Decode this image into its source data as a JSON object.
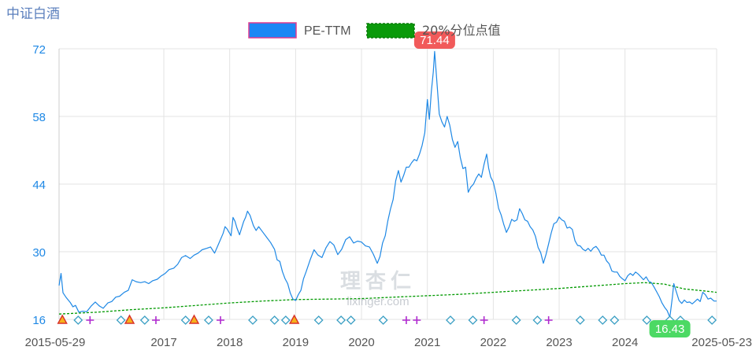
{
  "chart_data": {
    "type": "line",
    "title": "中证白酒",
    "legend": {
      "placement": "top-center",
      "items": [
        {
          "name": "PE-TTM",
          "style": "solid",
          "color": "#1e88e5"
        },
        {
          "name": "20%分位点值",
          "style": "dashed",
          "color": "#009900"
        }
      ]
    },
    "x_start": "2015-05-29",
    "x_end": "2025-05-23",
    "xlim": [
      2015.41,
      2025.39
    ],
    "ylim": [
      16,
      72
    ],
    "y_ticks": [
      16,
      30,
      44,
      58,
      72
    ],
    "x_ticks": [
      {
        "label": "2015-05-29",
        "value": 2015.41
      },
      {
        "label": "2017",
        "value": 2017.0
      },
      {
        "label": "2018",
        "value": 2018.0
      },
      {
        "label": "2019",
        "value": 2019.0
      },
      {
        "label": "2020",
        "value": 2020.0
      },
      {
        "label": "2021",
        "value": 2021.0
      },
      {
        "label": "2022",
        "value": 2022.0
      },
      {
        "label": "2023",
        "value": 2023.0
      },
      {
        "label": "2024",
        "value": 2024.0
      },
      {
        "label": "2025-05-23",
        "value": 2025.39
      }
    ],
    "grid": true,
    "series": [
      {
        "name": "PE-TTM",
        "color": "#1e88e5",
        "points": [
          [
            2015.41,
            23.0
          ],
          [
            2015.44,
            25.5
          ],
          [
            2015.47,
            21.5
          ],
          [
            2015.52,
            20.5
          ],
          [
            2015.58,
            19.5
          ],
          [
            2015.62,
            18.6
          ],
          [
            2015.66,
            18.9
          ],
          [
            2015.71,
            17.5
          ],
          [
            2015.77,
            17.7
          ],
          [
            2015.83,
            17.6
          ],
          [
            2015.9,
            18.8
          ],
          [
            2015.96,
            19.6
          ],
          [
            2016.02,
            18.8
          ],
          [
            2016.08,
            18.3
          ],
          [
            2016.15,
            19.4
          ],
          [
            2016.21,
            19.7
          ],
          [
            2016.27,
            20.6
          ],
          [
            2016.33,
            20.8
          ],
          [
            2016.4,
            21.6
          ],
          [
            2016.46,
            22.0
          ],
          [
            2016.52,
            24.2
          ],
          [
            2016.58,
            23.8
          ],
          [
            2016.65,
            23.6
          ],
          [
            2016.71,
            23.8
          ],
          [
            2016.77,
            23.4
          ],
          [
            2016.83,
            24.0
          ],
          [
            2016.9,
            24.3
          ],
          [
            2016.96,
            25.0
          ],
          [
            2017.02,
            25.5
          ],
          [
            2017.08,
            26.3
          ],
          [
            2017.15,
            26.6
          ],
          [
            2017.21,
            27.4
          ],
          [
            2017.27,
            28.8
          ],
          [
            2017.33,
            29.2
          ],
          [
            2017.4,
            28.6
          ],
          [
            2017.46,
            29.3
          ],
          [
            2017.52,
            29.7
          ],
          [
            2017.58,
            30.4
          ],
          [
            2017.65,
            30.7
          ],
          [
            2017.71,
            31.0
          ],
          [
            2017.77,
            29.7
          ],
          [
            2017.83,
            31.6
          ],
          [
            2017.9,
            33.8
          ],
          [
            2017.93,
            35.2
          ],
          [
            2017.96,
            34.7
          ],
          [
            2018.02,
            33.3
          ],
          [
            2018.05,
            37.1
          ],
          [
            2018.08,
            36.3
          ],
          [
            2018.11,
            34.9
          ],
          [
            2018.15,
            33.5
          ],
          [
            2018.18,
            34.9
          ],
          [
            2018.21,
            36.2
          ],
          [
            2018.24,
            37.1
          ],
          [
            2018.27,
            38.4
          ],
          [
            2018.31,
            37.5
          ],
          [
            2018.36,
            35.4
          ],
          [
            2018.4,
            34.4
          ],
          [
            2018.44,
            35.2
          ],
          [
            2018.5,
            34.1
          ],
          [
            2018.56,
            33.0
          ],
          [
            2018.62,
            31.9
          ],
          [
            2018.68,
            30.5
          ],
          [
            2018.72,
            28.3
          ],
          [
            2018.76,
            28.0
          ],
          [
            2018.8,
            25.9
          ],
          [
            2018.84,
            24.4
          ],
          [
            2018.88,
            23.4
          ],
          [
            2018.92,
            21.4
          ],
          [
            2018.96,
            20.2
          ],
          [
            2019.0,
            19.9
          ],
          [
            2019.04,
            21.1
          ],
          [
            2019.08,
            22.0
          ],
          [
            2019.12,
            24.4
          ],
          [
            2019.16,
            25.9
          ],
          [
            2019.22,
            28.3
          ],
          [
            2019.28,
            30.4
          ],
          [
            2019.34,
            29.3
          ],
          [
            2019.4,
            28.8
          ],
          [
            2019.46,
            30.8
          ],
          [
            2019.52,
            32.1
          ],
          [
            2019.58,
            31.4
          ],
          [
            2019.64,
            29.4
          ],
          [
            2019.7,
            30.5
          ],
          [
            2019.76,
            32.5
          ],
          [
            2019.82,
            33.1
          ],
          [
            2019.88,
            31.8
          ],
          [
            2019.94,
            32.2
          ],
          [
            2020.0,
            32.0
          ],
          [
            2020.06,
            31.2
          ],
          [
            2020.12,
            31.0
          ],
          [
            2020.18,
            29.5
          ],
          [
            2020.24,
            27.6
          ],
          [
            2020.28,
            29.0
          ],
          [
            2020.32,
            31.8
          ],
          [
            2020.36,
            33.3
          ],
          [
            2020.4,
            36.4
          ],
          [
            2020.44,
            38.8
          ],
          [
            2020.48,
            40.8
          ],
          [
            2020.52,
            44.7
          ],
          [
            2020.56,
            46.8
          ],
          [
            2020.6,
            44.4
          ],
          [
            2020.64,
            45.8
          ],
          [
            2020.68,
            47.5
          ],
          [
            2020.72,
            47.5
          ],
          [
            2020.76,
            48.4
          ],
          [
            2020.8,
            49.1
          ],
          [
            2020.84,
            48.8
          ],
          [
            2020.88,
            50.2
          ],
          [
            2020.92,
            52.0
          ],
          [
            2020.96,
            54.6
          ],
          [
            2021.0,
            61.5
          ],
          [
            2021.03,
            57.4
          ],
          [
            2021.06,
            63.1
          ],
          [
            2021.09,
            67.2
          ],
          [
            2021.11,
            71.44
          ],
          [
            2021.14,
            66.0
          ],
          [
            2021.18,
            58.5
          ],
          [
            2021.22,
            56.9
          ],
          [
            2021.26,
            55.8
          ],
          [
            2021.3,
            58.0
          ],
          [
            2021.34,
            56.2
          ],
          [
            2021.38,
            53.2
          ],
          [
            2021.42,
            51.6
          ],
          [
            2021.46,
            52.8
          ],
          [
            2021.5,
            49.5
          ],
          [
            2021.54,
            47.2
          ],
          [
            2021.58,
            47.5
          ],
          [
            2021.62,
            42.3
          ],
          [
            2021.66,
            43.4
          ],
          [
            2021.7,
            44.0
          ],
          [
            2021.74,
            45.2
          ],
          [
            2021.78,
            46.1
          ],
          [
            2021.82,
            45.4
          ],
          [
            2021.86,
            48.1
          ],
          [
            2021.9,
            50.2
          ],
          [
            2021.93,
            47.3
          ],
          [
            2021.96,
            45.5
          ],
          [
            2022.0,
            44.4
          ],
          [
            2022.04,
            42.1
          ],
          [
            2022.08,
            39.0
          ],
          [
            2022.12,
            37.6
          ],
          [
            2022.16,
            35.6
          ],
          [
            2022.2,
            34.0
          ],
          [
            2022.24,
            35.1
          ],
          [
            2022.28,
            36.7
          ],
          [
            2022.32,
            36.3
          ],
          [
            2022.36,
            36.6
          ],
          [
            2022.4,
            38.9
          ],
          [
            2022.44,
            37.9
          ],
          [
            2022.48,
            36.6
          ],
          [
            2022.52,
            36.3
          ],
          [
            2022.56,
            35.2
          ],
          [
            2022.6,
            34.5
          ],
          [
            2022.64,
            33.2
          ],
          [
            2022.68,
            30.9
          ],
          [
            2022.72,
            29.8
          ],
          [
            2022.76,
            27.6
          ],
          [
            2022.8,
            29.4
          ],
          [
            2022.84,
            31.6
          ],
          [
            2022.88,
            33.9
          ],
          [
            2022.92,
            35.8
          ],
          [
            2022.96,
            36.1
          ],
          [
            2023.0,
            37.2
          ],
          [
            2023.04,
            36.6
          ],
          [
            2023.08,
            36.3
          ],
          [
            2023.12,
            34.9
          ],
          [
            2023.16,
            35.1
          ],
          [
            2023.2,
            34.6
          ],
          [
            2023.24,
            32.3
          ],
          [
            2023.28,
            31.3
          ],
          [
            2023.32,
            31.2
          ],
          [
            2023.36,
            30.5
          ],
          [
            2023.4,
            30.2
          ],
          [
            2023.44,
            30.7
          ],
          [
            2023.48,
            30.1
          ],
          [
            2023.52,
            30.8
          ],
          [
            2023.56,
            31.1
          ],
          [
            2023.6,
            30.4
          ],
          [
            2023.64,
            29.3
          ],
          [
            2023.68,
            29.3
          ],
          [
            2023.72,
            28.1
          ],
          [
            2023.76,
            27.5
          ],
          [
            2023.8,
            26.0
          ],
          [
            2023.84,
            25.8
          ],
          [
            2023.88,
            25.8
          ],
          [
            2023.92,
            24.9
          ],
          [
            2023.96,
            24.4
          ],
          [
            2024.0,
            24.0
          ],
          [
            2024.04,
            25.0
          ],
          [
            2024.08,
            25.5
          ],
          [
            2024.12,
            25.1
          ],
          [
            2024.16,
            25.8
          ],
          [
            2024.2,
            25.4
          ],
          [
            2024.24,
            24.8
          ],
          [
            2024.28,
            24.2
          ],
          [
            2024.32,
            24.8
          ],
          [
            2024.36,
            23.9
          ],
          [
            2024.4,
            23.6
          ],
          [
            2024.44,
            22.7
          ],
          [
            2024.48,
            21.7
          ],
          [
            2024.52,
            20.7
          ],
          [
            2024.56,
            19.4
          ],
          [
            2024.6,
            18.5
          ],
          [
            2024.64,
            17.8
          ],
          [
            2024.68,
            16.43
          ],
          [
            2024.72,
            20.7
          ],
          [
            2024.74,
            23.4
          ],
          [
            2024.78,
            21.6
          ],
          [
            2024.82,
            19.9
          ],
          [
            2024.86,
            19.3
          ],
          [
            2024.9,
            20.0
          ],
          [
            2024.94,
            19.5
          ],
          [
            2024.98,
            19.6
          ],
          [
            2025.02,
            19.2
          ],
          [
            2025.06,
            19.7
          ],
          [
            2025.1,
            20.2
          ],
          [
            2025.14,
            19.7
          ],
          [
            2025.18,
            21.6
          ],
          [
            2025.22,
            21.1
          ],
          [
            2025.26,
            20.2
          ],
          [
            2025.3,
            20.4
          ],
          [
            2025.35,
            19.8
          ],
          [
            2025.39,
            19.8
          ]
        ]
      },
      {
        "name": "20%分位点值",
        "color": "#009900",
        "points": [
          [
            2015.41,
            17.1
          ],
          [
            2016.0,
            17.5
          ],
          [
            2016.5,
            18.0
          ],
          [
            2017.0,
            18.4
          ],
          [
            2017.5,
            18.9
          ],
          [
            2018.0,
            19.4
          ],
          [
            2018.5,
            19.8
          ],
          [
            2019.0,
            20.1
          ],
          [
            2019.5,
            20.2
          ],
          [
            2020.0,
            20.3
          ],
          [
            2020.5,
            20.6
          ],
          [
            2021.0,
            20.9
          ],
          [
            2021.5,
            21.2
          ],
          [
            2022.0,
            21.6
          ],
          [
            2022.5,
            22.0
          ],
          [
            2023.0,
            22.4
          ],
          [
            2023.5,
            22.9
          ],
          [
            2024.0,
            23.4
          ],
          [
            2024.3,
            23.6
          ],
          [
            2024.6,
            23.3
          ],
          [
            2024.9,
            22.3
          ],
          [
            2025.2,
            21.9
          ],
          [
            2025.39,
            21.6
          ]
        ]
      }
    ],
    "labels": [
      {
        "text": "71.44",
        "x": 2021.11,
        "y": 71.44,
        "kind": "max",
        "color": "#f15a5a"
      },
      {
        "text": "16.43",
        "x": 2024.68,
        "y": 16.43,
        "kind": "min",
        "color": "#4cd964"
      }
    ],
    "event_markers": [
      {
        "type": "triangle",
        "x": 2015.46
      },
      {
        "type": "diamond",
        "x": 2015.7
      },
      {
        "type": "plus",
        "x": 2015.88
      },
      {
        "type": "diamond",
        "x": 2016.35
      },
      {
        "type": "triangle",
        "x": 2016.48
      },
      {
        "type": "diamond",
        "x": 2016.71
      },
      {
        "type": "plus",
        "x": 2016.88
      },
      {
        "type": "diamond",
        "x": 2017.33
      },
      {
        "type": "triangle",
        "x": 2017.46
      },
      {
        "type": "diamond",
        "x": 2017.68
      },
      {
        "type": "plus",
        "x": 2017.86
      },
      {
        "type": "diamond",
        "x": 2018.35
      },
      {
        "type": "diamond",
        "x": 2018.68
      },
      {
        "type": "diamond",
        "x": 2018.85
      },
      {
        "type": "triangle",
        "x": 2018.98
      },
      {
        "type": "diamond",
        "x": 2019.35
      },
      {
        "type": "diamond",
        "x": 2019.69
      },
      {
        "type": "diamond",
        "x": 2019.84
      },
      {
        "type": "diamond",
        "x": 2020.33
      },
      {
        "type": "plus",
        "x": 2020.68
      },
      {
        "type": "plus",
        "x": 2020.84
      },
      {
        "type": "diamond",
        "x": 2021.35
      },
      {
        "type": "diamond",
        "x": 2021.69
      },
      {
        "type": "plus",
        "x": 2021.86
      },
      {
        "type": "diamond",
        "x": 2022.35
      },
      {
        "type": "diamond",
        "x": 2022.67
      },
      {
        "type": "plus",
        "x": 2022.84
      },
      {
        "type": "diamond",
        "x": 2023.32
      },
      {
        "type": "diamond",
        "x": 2023.66
      },
      {
        "type": "diamond",
        "x": 2023.84
      },
      {
        "type": "diamond",
        "x": 2024.33
      },
      {
        "type": "diamond",
        "x": 2024.68
      },
      {
        "type": "diamond",
        "x": 2024.84
      },
      {
        "type": "diamond",
        "x": 2025.32
      }
    ]
  },
  "watermark": {
    "logo_text": "理杏仁",
    "url_text": "lixinger.com"
  }
}
